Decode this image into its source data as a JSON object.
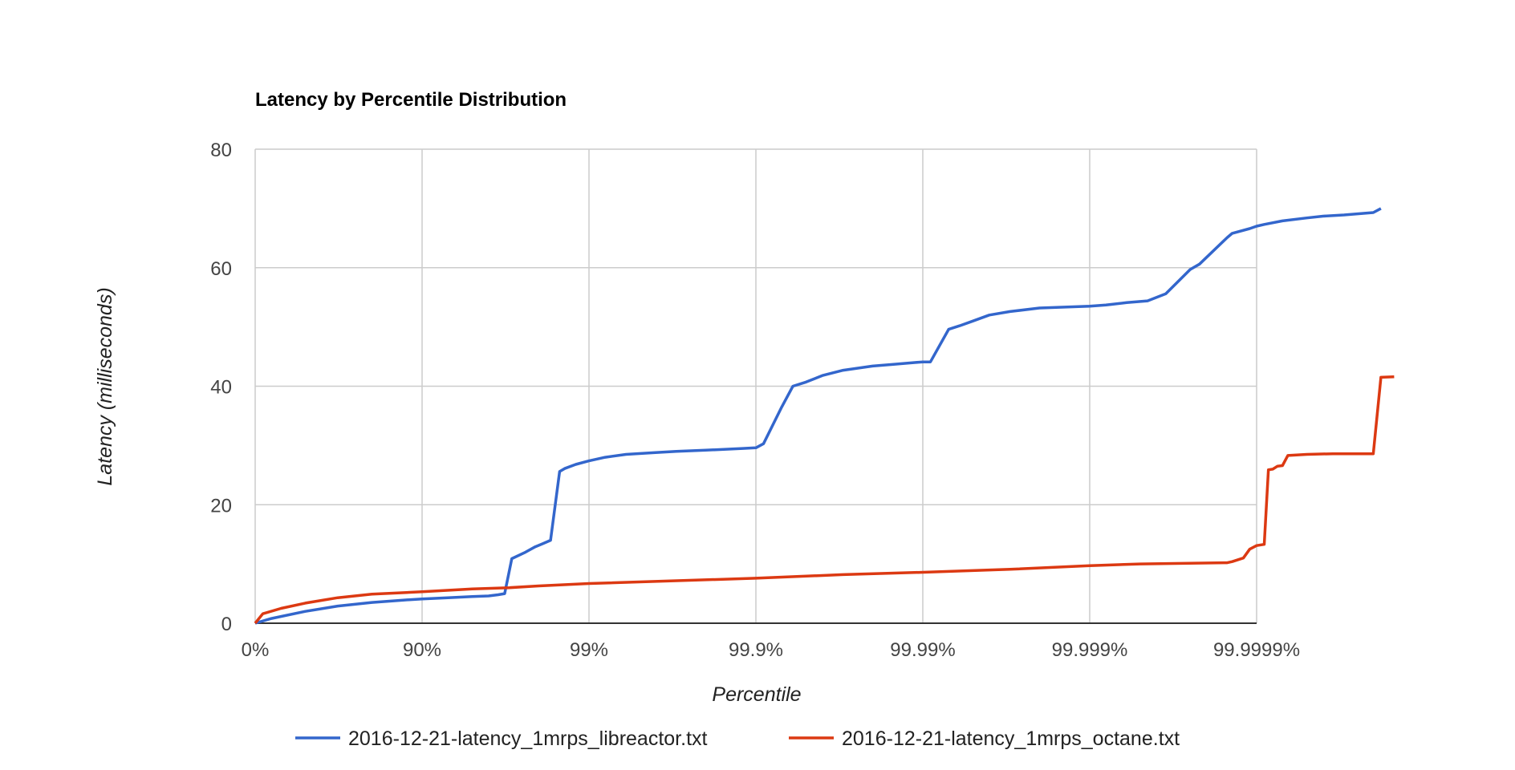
{
  "chart_data": {
    "type": "line",
    "title": "Latency by Percentile Distribution",
    "xlabel": "Percentile",
    "ylabel": "Latency (milliseconds)",
    "x_scale": "log_inverse_percentile",
    "x_tick_labels": [
      "0%",
      "90%",
      "99%",
      "99.9%",
      "99.99%",
      "99.999%",
      "99.9999%"
    ],
    "x_ticks": [
      0,
      90,
      99,
      99.9,
      99.99,
      99.999,
      99.9999
    ],
    "y_ticks": [
      0,
      20,
      40,
      60,
      80
    ],
    "ylim": [
      0,
      80
    ],
    "grid": true,
    "legend_position": "bottom",
    "series": [
      {
        "name": "2016-12-21-latency_1mrps_libreactor.txt",
        "color": "#3366cc",
        "points": [
          [
            0,
            0
          ],
          [
            20,
            0.8
          ],
          [
            50,
            2.0
          ],
          [
            68,
            2.9
          ],
          [
            80,
            3.5
          ],
          [
            87,
            3.9
          ],
          [
            90,
            4.1
          ],
          [
            93,
            4.3
          ],
          [
            95,
            4.5
          ],
          [
            96,
            4.6
          ],
          [
            96.5,
            4.8
          ],
          [
            96.8,
            5.0
          ],
          [
            97.1,
            10.9
          ],
          [
            97.6,
            12.0
          ],
          [
            97.9,
            12.9
          ],
          [
            98.1,
            13.4
          ],
          [
            98.3,
            14.0
          ],
          [
            98.5,
            25.6
          ],
          [
            98.6,
            26.1
          ],
          [
            98.8,
            26.8
          ],
          [
            99.0,
            27.4
          ],
          [
            99.2,
            28.0
          ],
          [
            99.4,
            28.5
          ],
          [
            99.6,
            28.8
          ],
          [
            99.7,
            29.0
          ],
          [
            99.8,
            29.2
          ],
          [
            99.88,
            29.5
          ],
          [
            99.9,
            29.6
          ],
          [
            99.91,
            30.3
          ],
          [
            99.93,
            36.5
          ],
          [
            99.94,
            40.0
          ],
          [
            99.95,
            40.7
          ],
          [
            99.96,
            41.8
          ],
          [
            99.97,
            42.7
          ],
          [
            99.98,
            43.4
          ],
          [
            99.985,
            43.7
          ],
          [
            99.989,
            44.0
          ],
          [
            99.99,
            44.1
          ],
          [
            99.991,
            44.1
          ],
          [
            99.993,
            49.6
          ],
          [
            99.994,
            50.2
          ],
          [
            99.995,
            51.0
          ],
          [
            99.996,
            52.0
          ],
          [
            99.997,
            52.6
          ],
          [
            99.998,
            53.2
          ],
          [
            99.999,
            53.5
          ],
          [
            99.9992,
            53.7
          ],
          [
            99.9994,
            54.1
          ],
          [
            99.99955,
            54.4
          ],
          [
            99.99965,
            55.6
          ],
          [
            99.99975,
            59.7
          ],
          [
            99.99978,
            60.6
          ],
          [
            99.99985,
            65.1
          ],
          [
            99.99986,
            65.8
          ],
          [
            99.99989,
            66.6
          ],
          [
            99.9999,
            67.0
          ],
          [
            99.99991,
            67.3
          ],
          [
            99.99993,
            67.9
          ],
          [
            99.99995,
            68.4
          ],
          [
            99.99996,
            68.7
          ],
          [
            99.99997,
            68.9
          ],
          [
            99.99998,
            69.3
          ],
          [
            99.999982,
            70.0
          ]
        ]
      },
      {
        "name": "2016-12-21-latency_1mrps_octane.txt",
        "color": "#dc3912",
        "points": [
          [
            0,
            0
          ],
          [
            10,
            1.6
          ],
          [
            30,
            2.5
          ],
          [
            50,
            3.4
          ],
          [
            68,
            4.3
          ],
          [
            80,
            4.9
          ],
          [
            90,
            5.3
          ],
          [
            95,
            5.8
          ],
          [
            97,
            6.0
          ],
          [
            98,
            6.3
          ],
          [
            99,
            6.7
          ],
          [
            99.9,
            7.6
          ],
          [
            99.97,
            8.2
          ],
          [
            99.99,
            8.6
          ],
          [
            99.997,
            9.1
          ],
          [
            99.999,
            9.7
          ],
          [
            99.9995,
            10.0
          ],
          [
            99.99985,
            10.2
          ],
          [
            99.99986,
            10.4
          ],
          [
            99.99988,
            11.0
          ],
          [
            99.99989,
            12.5
          ],
          [
            99.9999,
            13.1
          ],
          [
            99.99991,
            13.3
          ],
          [
            99.999915,
            25.9
          ],
          [
            99.99992,
            26.0
          ],
          [
            99.999925,
            26.5
          ],
          [
            99.99993,
            26.6
          ],
          [
            99.999935,
            28.3
          ],
          [
            99.99995,
            28.5
          ],
          [
            99.999965,
            28.6
          ],
          [
            99.99998,
            28.6
          ],
          [
            99.999982,
            41.5
          ],
          [
            99.999985,
            41.6
          ]
        ]
      }
    ]
  }
}
